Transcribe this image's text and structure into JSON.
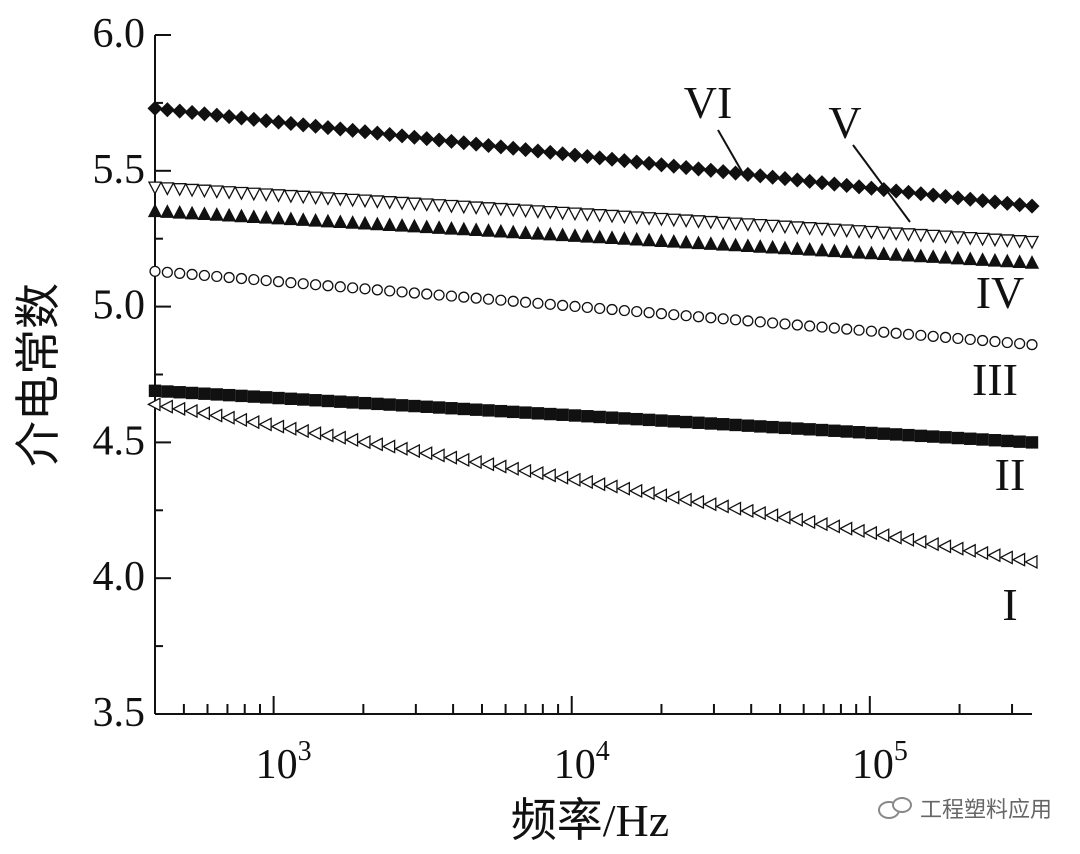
{
  "chart_data": {
    "type": "scatter",
    "title": "",
    "ylabel": "介电常数",
    "xlabel": "频率/Hz",
    "xscale": "log",
    "xlim": [
      400,
      350000
    ],
    "ylim": [
      3.5,
      6.0
    ],
    "yticks": [
      "6.0",
      "5.5",
      "5.0",
      "4.5",
      "4.0",
      "3.5"
    ],
    "xticks": [
      {
        "base": "10",
        "exp": "3",
        "value": 1000
      },
      {
        "base": "10",
        "exp": "4",
        "value": 10000
      },
      {
        "base": "10",
        "exp": "5",
        "value": 100000
      }
    ],
    "grid": false,
    "legend": "none",
    "series": [
      {
        "name": "I",
        "marker": "triangle-left-open",
        "label_pos": [
          350000,
          3.9
        ],
        "values_start": 4.64,
        "values_end": 4.06
      },
      {
        "name": "II",
        "marker": "square-filled",
        "label_pos": [
          350000,
          4.5
        ],
        "values_start": 4.69,
        "values_end": 4.5
      },
      {
        "name": "III",
        "marker": "circle-open",
        "label_pos": [
          350000,
          4.85
        ],
        "values_start": 5.13,
        "values_end": 4.86
      },
      {
        "name": "IV",
        "marker": "triangle-up-filled",
        "label_pos": [
          350000,
          5.06
        ],
        "values_start": 5.35,
        "values_end": 5.16
      },
      {
        "name": "V",
        "marker": "triangle-down-open",
        "label_pos": [
          150000,
          5.65
        ],
        "values_start": 5.44,
        "values_end": 5.24
      },
      {
        "name": "VI",
        "marker": "diamond-filled",
        "label_pos": [
          20000,
          5.7
        ],
        "values_start": 5.73,
        "values_end": 5.37
      }
    ]
  },
  "watermark": {
    "text": "工程塑料应用"
  }
}
